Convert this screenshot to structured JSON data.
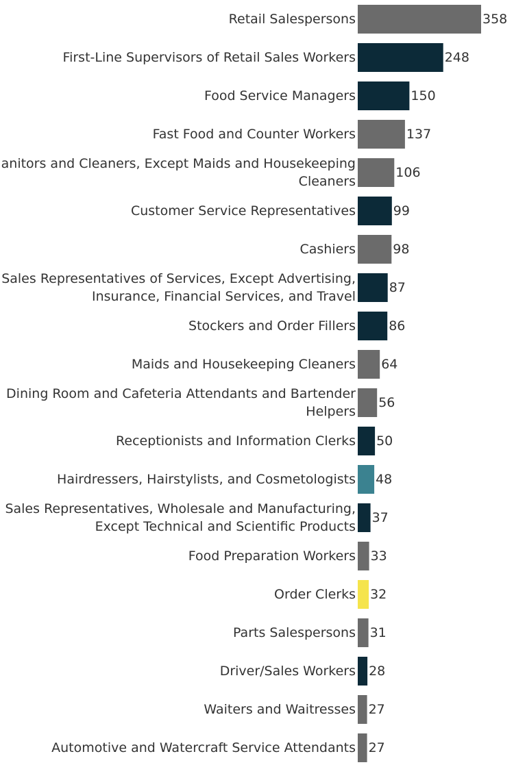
{
  "chart_data": {
    "type": "bar",
    "orientation": "horizontal",
    "title": "",
    "xlabel": "",
    "ylabel": "",
    "grid": false,
    "legend": "none",
    "xlim": [
      0,
      358
    ],
    "categories": [
      [
        "Retail Salespersons"
      ],
      [
        "First-Line Supervisors of Retail Sales Workers"
      ],
      [
        "Food Service Managers"
      ],
      [
        "Fast Food and Counter Workers"
      ],
      [
        "Janitors and Cleaners, Except Maids and Housekeeping",
        "Cleaners"
      ],
      [
        "Customer Service Representatives"
      ],
      [
        "Cashiers"
      ],
      [
        "Sales Representatives of Services, Except Advertising,",
        "Insurance, Financial Services, and Travel"
      ],
      [
        "Stockers and Order Fillers"
      ],
      [
        "Maids and Housekeeping Cleaners"
      ],
      [
        "Dining Room and Cafeteria Attendants and Bartender",
        "Helpers"
      ],
      [
        "Receptionists and Information Clerks"
      ],
      [
        "Hairdressers, Hairstylists, and Cosmetologists"
      ],
      [
        "Sales Representatives, Wholesale and Manufacturing,",
        "Except Technical and Scientific Products"
      ],
      [
        "Food Preparation Workers"
      ],
      [
        "Order Clerks"
      ],
      [
        "Parts Salespersons"
      ],
      [
        "Driver/Sales Workers"
      ],
      [
        "Waiters and Waitresses"
      ],
      [
        "Automotive and Watercraft Service Attendants"
      ]
    ],
    "values": [
      358,
      248,
      150,
      137,
      106,
      99,
      98,
      87,
      86,
      64,
      56,
      50,
      48,
      37,
      33,
      32,
      31,
      28,
      27,
      27
    ],
    "bar_colors": [
      "#6b6b6b",
      "#0c2a38",
      "#0c2a38",
      "#6b6b6b",
      "#6b6b6b",
      "#0c2a38",
      "#6b6b6b",
      "#0c2a38",
      "#0c2a38",
      "#6b6b6b",
      "#6b6b6b",
      "#0c2a38",
      "#3b8290",
      "#0c2a38",
      "#6b6b6b",
      "#f5e44c",
      "#6b6b6b",
      "#0c2a38",
      "#6b6b6b",
      "#6b6b6b"
    ]
  }
}
